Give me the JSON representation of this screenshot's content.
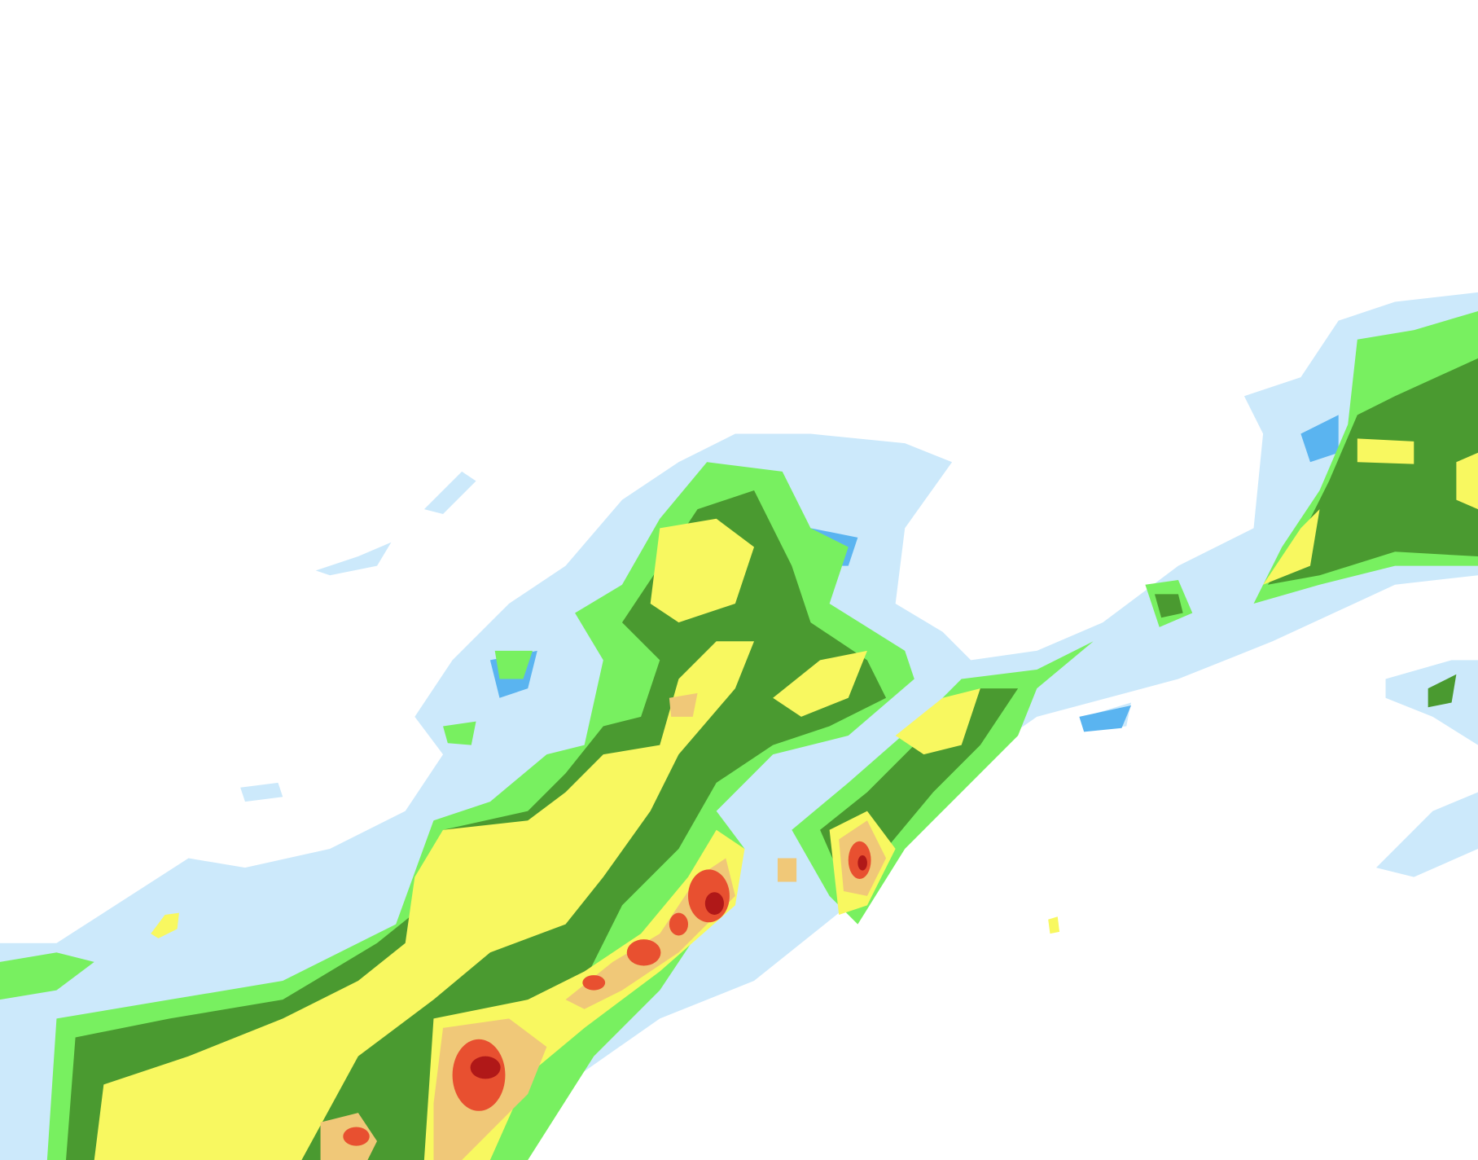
{
  "map": {
    "type": "precipitation-radar-overlay",
    "background": "#ffffff",
    "levels": [
      {
        "id": "very-light",
        "color": "#cce9fb"
      },
      {
        "id": "light",
        "color": "#5ab4f0"
      },
      {
        "id": "light-moderate",
        "color": "#78f060"
      },
      {
        "id": "moderate",
        "color": "#4a9a30"
      },
      {
        "id": "moderate-heavy",
        "color": "#f8f860"
      },
      {
        "id": "heavy",
        "color": "#f0c878"
      },
      {
        "id": "very-heavy",
        "color": "#e85030"
      },
      {
        "id": "extreme",
        "color": "#b01818"
      }
    ]
  }
}
